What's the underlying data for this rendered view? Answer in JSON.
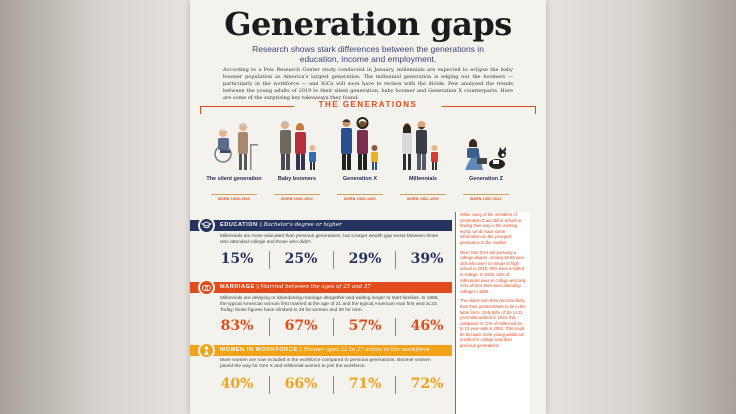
{
  "title": "Generation gaps",
  "subtitle": "Research shows stark differences between the generations in education, income and employment.",
  "intro": "According to a Pew Research Center study conducted in January, millennials are expected to eclipse the baby boomer population as America's largest generation. The millennial generation is edging out the boomers — particularly in the workforce — and IGCs will soon have to reckon with the divide. Pew analyzed the trends between the young adults of 2019 to their silent generation, baby boomer and Generation X counterparts. Here are some of the surprising key takeaways they found:",
  "generations_heading": "THE GENERATIONS",
  "generations": [
    {
      "name": "The silent generation",
      "born": "BORN 1928-1945"
    },
    {
      "name": "Baby boomers",
      "born": "BORN 1946-1964"
    },
    {
      "name": "Generation X",
      "born": "BORN 1965-1980"
    },
    {
      "name": "Millennials",
      "born": "BORN 1981-1996"
    },
    {
      "name": "Generation Z",
      "born": "BORN 1997-2012"
    }
  ],
  "sections": {
    "education": {
      "label": "EDUCATION",
      "sub": "Bachelor's degree or higher",
      "desc": "Millennials are more educated than previous generations, but a larger wealth gap exists between those who attended college and those who didn't.",
      "values": [
        "15%",
        "25%",
        "29%",
        "39%"
      ],
      "color": "#26335e"
    },
    "marriage": {
      "label": "MARRIAGE",
      "sub": "Married between the ages of 25 and 37",
      "desc": "Millennials are delaying or abandoning marriage altogether and waiting longer to start families. In 1968, the typical American woman first married at the age of 21 and the typical American man first wed at 23. Today, those figures have climbed to 28 for women and 30 for men.",
      "values": [
        "83%",
        "67%",
        "57%",
        "46%"
      ],
      "color": "#e24b1c"
    },
    "workforce": {
      "label": "WOMEN IN WORKFORCE",
      "sub": "Women ages 22 to 37 active in the workforce",
      "desc": "More women are now included in the workforce compared to previous generations. Boomer women paved the way for Gen X and millennial women to join the workforce.",
      "values": [
        "40%",
        "66%",
        "71%",
        "72%"
      ],
      "color": "#f0a21a"
    }
  },
  "sidebar": {
    "p1": "While many of the members of Generation Z are still in school or finding their way in the working world, we do have some information on the youngest generation to the market:",
    "p2": "More Gen Zers are pursuing a college degree. Among 18-20 year olds who were no longer in high school in 2018, 59% were enrolled in college. In 2003, 53% of millennials were in college and only 44% of Gen Xers were attending college in 1986.",
    "p3": "The oldest Gen Zers are less likely than their predecessors to be in the labor force. Only 58% of 18- to 21-year-olds worked in 2018; this compares to 72% of millennial 18- to 21-year-olds in 2002. This could be because more young adults are enrolled in college now than previous generations."
  },
  "colors": {
    "navy": "#26335e",
    "orange": "#e24b1c",
    "gold": "#f0a21a",
    "paper": "#f4f2ec"
  }
}
